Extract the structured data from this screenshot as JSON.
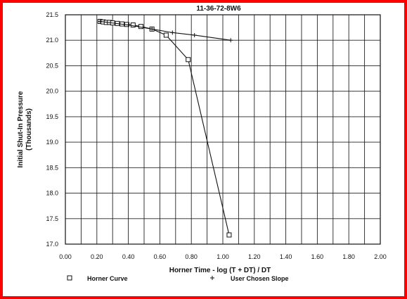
{
  "chart_data": {
    "type": "line",
    "title": "11-36-72-8W6",
    "xlabel": "Horner Time - log (T + DT) / DT",
    "ylabel": "Initial Shut-In Pressure",
    "ylabel_sub": "(Thousands)",
    "xlim": [
      0.0,
      2.0
    ],
    "ylim": [
      17.0,
      21.5
    ],
    "x_ticks": [
      "0.00",
      "0.20",
      "0.40",
      "0.60",
      "0.80",
      "1.00",
      "1.20",
      "1.40",
      "1.60",
      "1.80",
      "2.00"
    ],
    "y_ticks": [
      "21.5",
      "21.0",
      "20.5",
      "20.0",
      "19.5",
      "19.0",
      "18.5",
      "18.0",
      "17.5",
      "17.0"
    ],
    "grid": true,
    "legend_position": "bottom",
    "series": [
      {
        "name": "Horner Curve",
        "marker": "square",
        "x": [
          0.22,
          0.24,
          0.26,
          0.28,
          0.3,
          0.33,
          0.36,
          0.39,
          0.43,
          0.48,
          0.55,
          0.64,
          0.78,
          1.04
        ],
        "y": [
          21.37,
          21.36,
          21.35,
          21.35,
          21.34,
          21.33,
          21.32,
          21.31,
          21.3,
          21.27,
          21.22,
          21.1,
          20.62,
          17.18
        ]
      },
      {
        "name": "User Chosen Slope",
        "marker": "plus",
        "x": [
          0.22,
          0.4,
          0.55,
          0.68,
          0.82,
          1.05
        ],
        "y": [
          21.37,
          21.3,
          21.22,
          21.15,
          21.1,
          21.0
        ]
      }
    ]
  }
}
